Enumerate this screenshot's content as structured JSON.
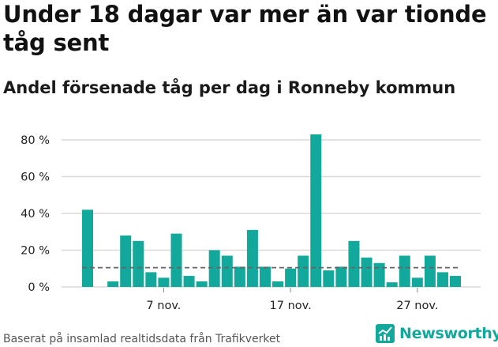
{
  "title": "Under 18 dagar var mer än var tionde tåg sent",
  "subtitle": "Andel försenade tåg per dag i Ronneby kommun",
  "source": "Baserat på insamlad realtidsdata från Trafikverket",
  "brand": {
    "name": "Newsworthy",
    "color": "#12a89b",
    "icon": "newsworthy-logo-icon"
  },
  "colors": {
    "bar": "#12a89b",
    "grid": "#d9d9d9",
    "reference_line": "#666666"
  },
  "chart_data": {
    "type": "bar",
    "x_start": "2017-11-01",
    "x_end": "2017-11-30",
    "values": [
      42,
      0,
      3,
      28,
      25,
      8,
      5,
      29,
      6,
      3,
      20,
      17,
      11,
      31,
      11,
      3,
      10,
      17,
      83,
      9,
      11,
      25,
      16,
      13,
      2.5,
      17,
      5,
      17,
      8,
      6
    ],
    "reference_line": {
      "value": 10.5,
      "style": "dashed"
    },
    "ylim": [
      0,
      90
    ],
    "y_ticks": [
      0,
      20,
      40,
      60,
      80
    ],
    "y_tick_labels": [
      "0 %",
      "20 %",
      "40 %",
      "60 %",
      "80 %"
    ],
    "x_tick_labels": [
      {
        "day": 7,
        "label": "7 nov."
      },
      {
        "day": 17,
        "label": "17 nov."
      },
      {
        "day": 27,
        "label": "27 nov."
      }
    ],
    "grid": true,
    "legend": "none"
  }
}
